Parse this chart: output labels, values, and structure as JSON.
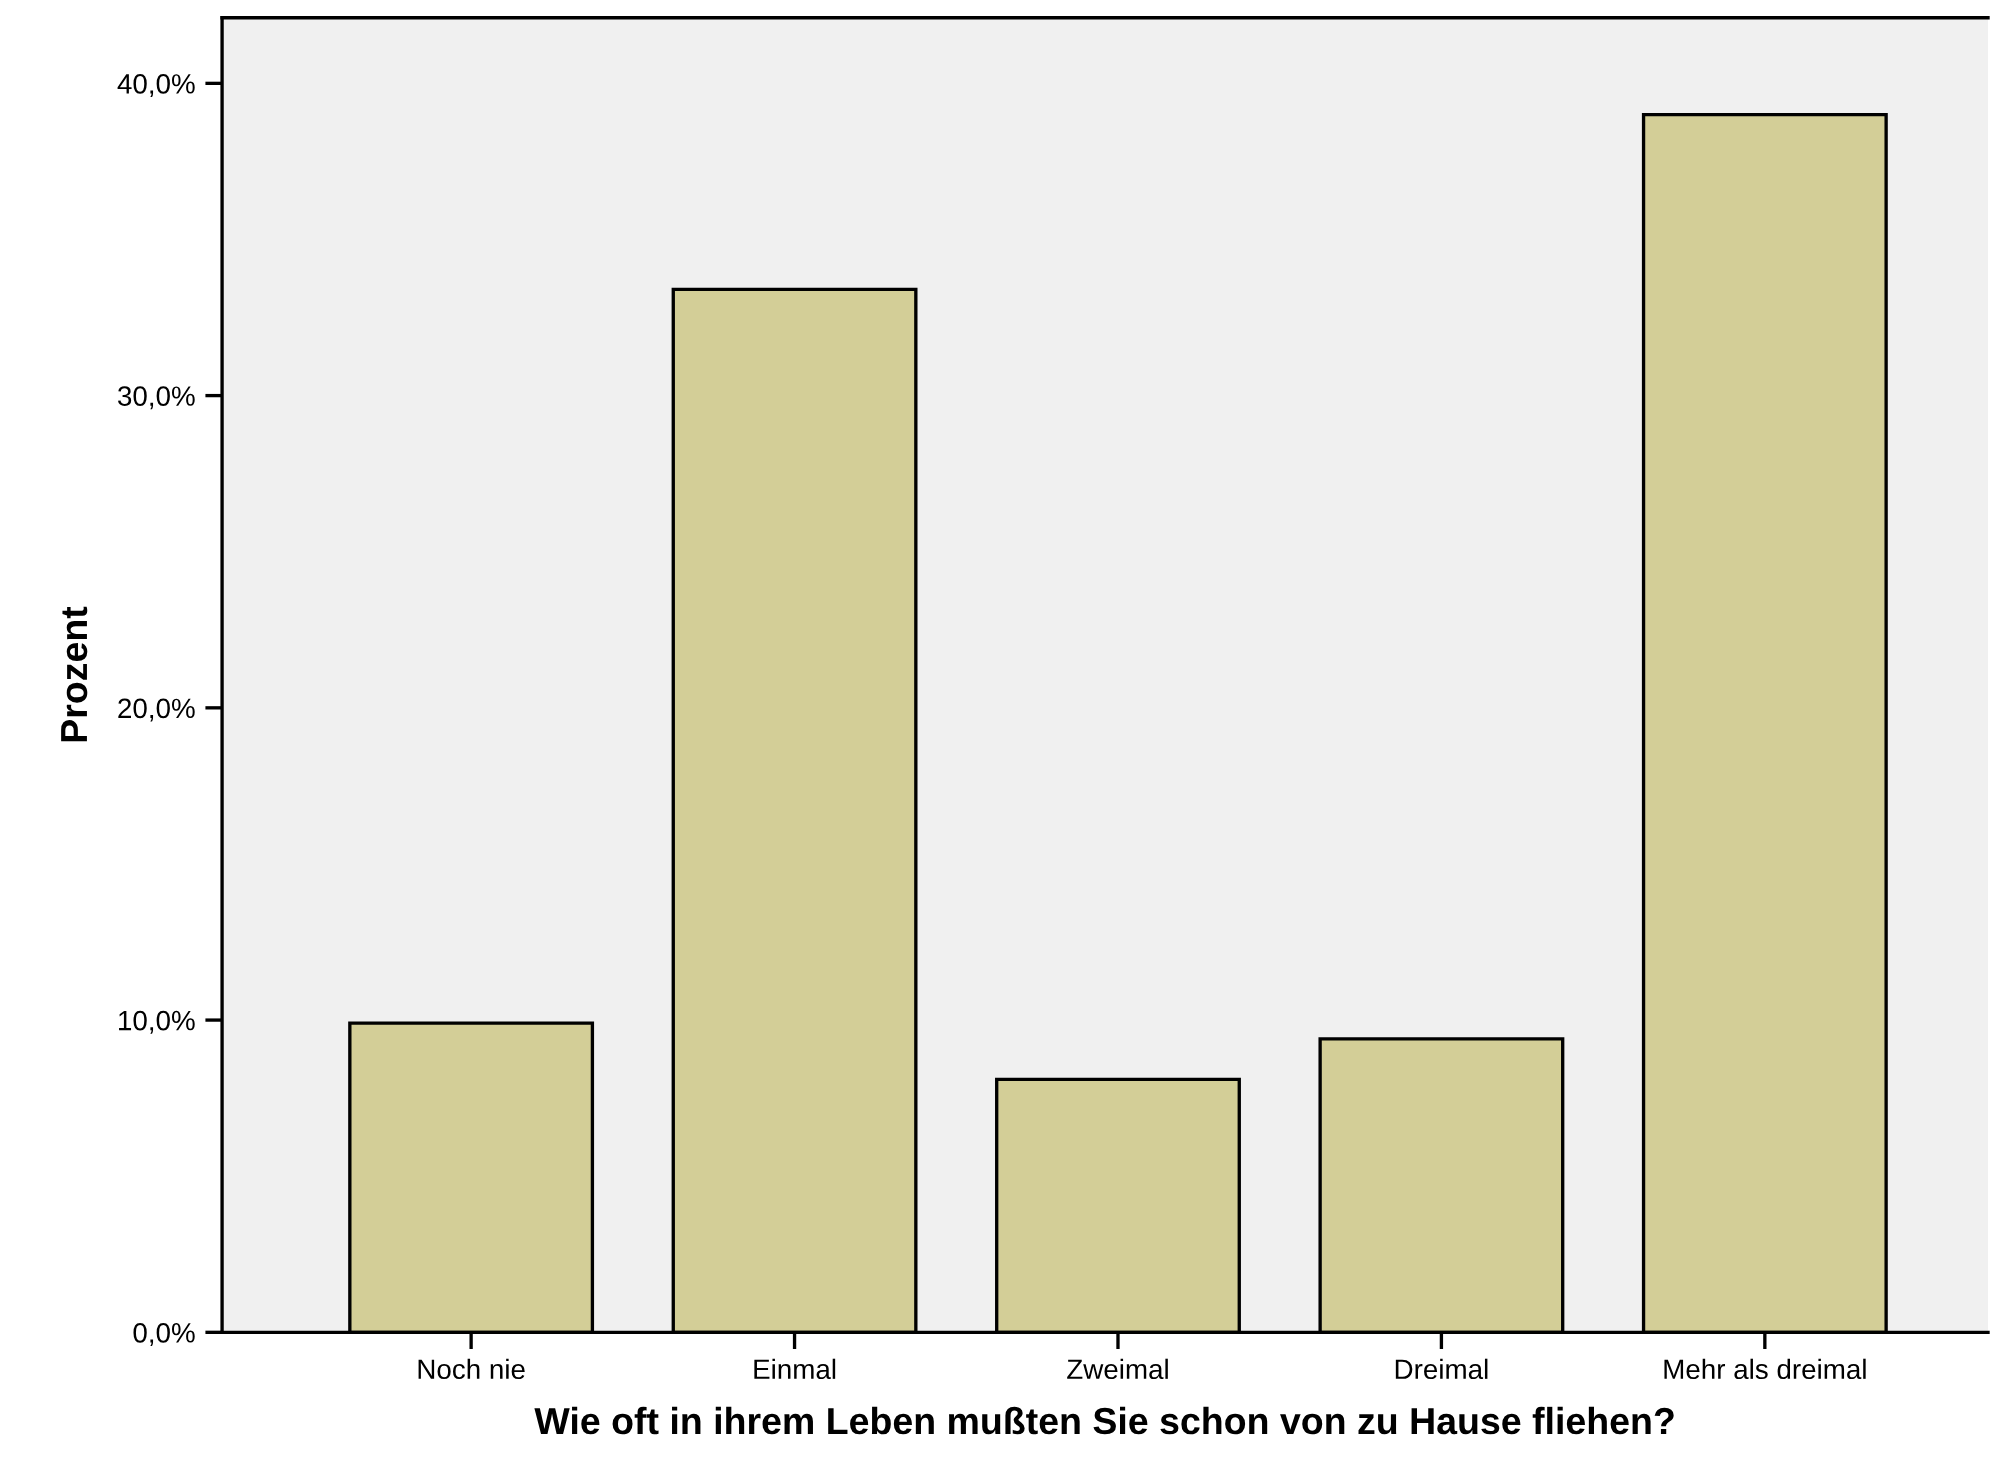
{
  "chart_data": {
    "type": "bar",
    "xlabel": "Wie oft in ihrem Leben mußten Sie schon von zu Hause fliehen?",
    "ylabel": "Prozent",
    "categories": [
      "Noch nie",
      "Einmal",
      "Zweimal",
      "Dreimal",
      "Mehr als dreimal"
    ],
    "values": [
      9.9,
      33.4,
      8.1,
      9.4,
      39.0
    ],
    "color": "#d3ce97",
    "ylim": [
      0,
      42.1
    ],
    "yticks": [
      {
        "value": 0,
        "label": "0,0%"
      },
      {
        "value": 10,
        "label": "10,0%"
      },
      {
        "value": 20,
        "label": "20,0%"
      },
      {
        "value": 30,
        "label": "30,0%"
      },
      {
        "value": 40,
        "label": "40,0%"
      }
    ],
    "grid": false
  }
}
